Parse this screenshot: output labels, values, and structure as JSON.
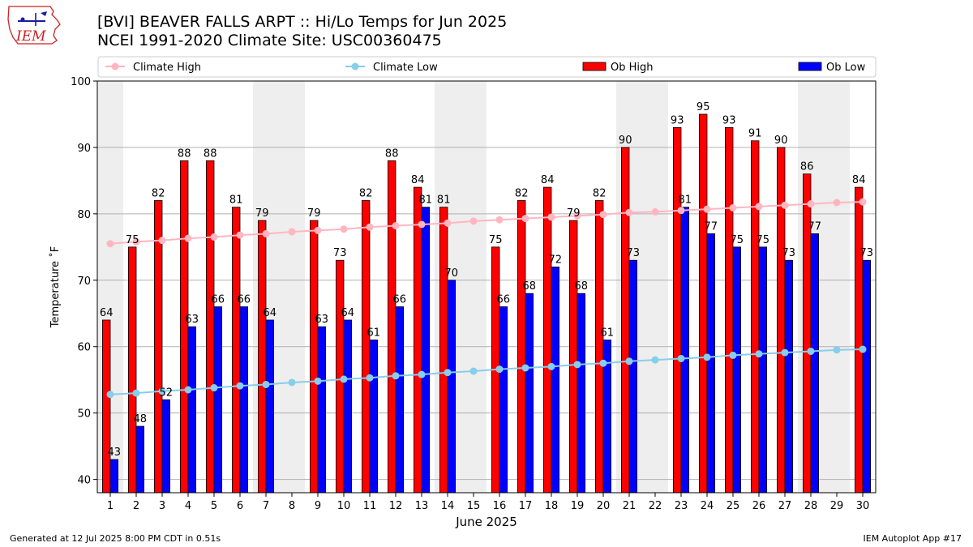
{
  "header": {
    "logo_text": "IEM",
    "title_line1": "[BVI] BEAVER FALLS ARPT :: Hi/Lo Temps for Jun 2025",
    "title_line2": "NCEI 1991-2020 Climate Site: USC00360475"
  },
  "footer": {
    "generated": "Generated at 12 Jul 2025 8:00 PM CDT in 0.51s",
    "app": "IEM Autoplot App #17"
  },
  "chart_data": {
    "type": "bar",
    "xlabel": "June 2025",
    "ylabel": "Temperature ˚F",
    "ylim": [
      38,
      100
    ],
    "yticks": [
      40,
      50,
      60,
      70,
      80,
      90,
      100
    ],
    "grid": "horizontal",
    "legend_placement": "top",
    "weekend_shading_days": [
      1,
      7,
      8,
      14,
      15,
      21,
      22,
      28,
      29
    ],
    "categories": [
      1,
      2,
      3,
      4,
      5,
      6,
      7,
      8,
      9,
      10,
      11,
      12,
      13,
      14,
      15,
      16,
      17,
      18,
      19,
      20,
      21,
      22,
      23,
      24,
      25,
      26,
      27,
      28,
      29,
      30
    ],
    "legend": [
      "Climate High",
      "Climate Low",
      "Ob High",
      "Ob Low"
    ],
    "series": [
      {
        "name": "Ob High",
        "kind": "bar",
        "color": "#ff0000",
        "values": [
          64,
          75,
          82,
          88,
          88,
          81,
          79,
          null,
          79,
          73,
          82,
          88,
          84,
          81,
          null,
          75,
          82,
          84,
          79,
          82,
          90,
          null,
          93,
          95,
          93,
          91,
          90,
          86,
          null,
          84
        ]
      },
      {
        "name": "Ob Low",
        "kind": "bar",
        "color": "#0000ff",
        "values": [
          43,
          48,
          52,
          63,
          66,
          66,
          64,
          null,
          63,
          64,
          61,
          66,
          81,
          70,
          null,
          66,
          68,
          72,
          68,
          61,
          73,
          null,
          81,
          77,
          75,
          75,
          73,
          77,
          null,
          73
        ]
      },
      {
        "name": "Climate High",
        "kind": "line",
        "color": "#ffb6c1",
        "values": [
          75.5,
          75.8,
          76.0,
          76.3,
          76.5,
          76.8,
          77.0,
          77.3,
          77.5,
          77.7,
          78.0,
          78.2,
          78.4,
          78.6,
          78.9,
          79.1,
          79.3,
          79.5,
          79.7,
          79.9,
          80.2,
          80.3,
          80.5,
          80.7,
          80.9,
          81.1,
          81.3,
          81.5,
          81.7,
          81.8
        ]
      },
      {
        "name": "Climate Low",
        "kind": "line",
        "color": "#87ceeb",
        "values": [
          52.8,
          53.0,
          53.3,
          53.5,
          53.8,
          54.1,
          54.3,
          54.6,
          54.8,
          55.1,
          55.3,
          55.6,
          55.8,
          56.1,
          56.3,
          56.6,
          56.8,
          57.0,
          57.3,
          57.5,
          57.8,
          58.0,
          58.2,
          58.4,
          58.7,
          58.9,
          59.1,
          59.3,
          59.5,
          59.6
        ]
      }
    ]
  },
  "colors": {
    "weekend_band": "#eeeeee",
    "grid": "#b0b0b0",
    "logo_red": "#cc2222",
    "logo_blue": "#1a1aa8"
  }
}
